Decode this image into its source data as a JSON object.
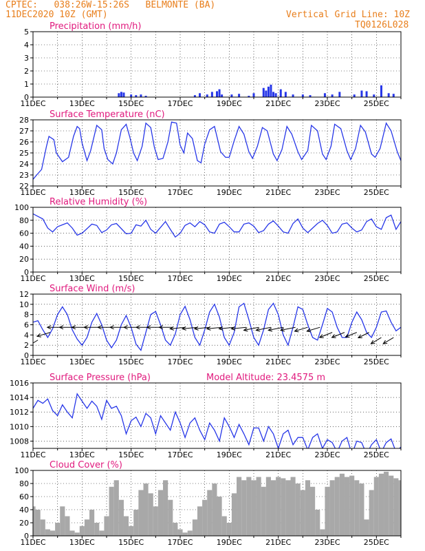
{
  "header": {
    "line1": "CPTEC:   038:26W-15:26S   BELMONTE (BA)",
    "line2": "11DEC2020 10Z (GMT)",
    "grid_note": "Vertical Grid Line: 10Z",
    "code": "TQ0126L028"
  },
  "colors": {
    "accent": "#e87e1b",
    "title": "#e0197d",
    "line": "#2636e8",
    "cloud": "#a8a8a8"
  },
  "x_ticks": [
    "11DEC",
    "13DEC",
    "15DEC",
    "17DEC",
    "19DEC",
    "21DEC",
    "23DEC",
    "25DEC"
  ],
  "chart_data": [
    {
      "type": "bar",
      "title": "Precipitation (mm/h)",
      "ylim": [
        0,
        5
      ],
      "yticks": [
        0,
        1,
        2,
        3,
        4,
        5
      ],
      "x_start_day": 11.0,
      "x_end_day": 26.0,
      "x": [
        14.5,
        14.6,
        14.7,
        15.0,
        15.2,
        15.4,
        15.6,
        17.6,
        17.8,
        18.1,
        18.3,
        18.5,
        18.6,
        18.7,
        19.1,
        19.4,
        19.8,
        20.0,
        20.4,
        20.5,
        20.6,
        20.7,
        20.8,
        20.9,
        21.1,
        21.3,
        21.6,
        22.0,
        22.3,
        22.9,
        23.2,
        23.5,
        24.1,
        24.4,
        24.6,
        24.9,
        25.2,
        25.5,
        25.7
      ],
      "values": [
        0.3,
        0.4,
        0.35,
        0.2,
        0.15,
        0.2,
        0.1,
        0.15,
        0.3,
        0.2,
        0.4,
        0.45,
        0.6,
        0.2,
        0.2,
        0.25,
        0.1,
        0.3,
        0.7,
        0.5,
        0.8,
        0.95,
        0.4,
        0.3,
        0.6,
        0.4,
        0.2,
        0.2,
        0.15,
        0.3,
        0.2,
        0.4,
        0.2,
        0.5,
        0.45,
        0.2,
        0.9,
        0.3,
        0.25
      ]
    },
    {
      "type": "line",
      "title": "Surface Temperature (nC)",
      "ylim": [
        22,
        28
      ],
      "yticks": [
        22,
        23,
        24,
        25,
        26,
        27,
        28
      ],
      "x": [
        11.0,
        11.15,
        11.35,
        11.55,
        11.65,
        11.85,
        11.95,
        12.2,
        12.45,
        12.65,
        12.8,
        12.9,
        13.0,
        13.2,
        13.35,
        13.6,
        13.8,
        13.9,
        14.05,
        14.25,
        14.4,
        14.6,
        14.8,
        14.95,
        15.1,
        15.25,
        15.45,
        15.6,
        15.8,
        15.95,
        16.1,
        16.3,
        16.5,
        16.65,
        16.85,
        17.0,
        17.15,
        17.3,
        17.5,
        17.7,
        17.85,
        18.0,
        18.2,
        18.4,
        18.65,
        18.85,
        19.0,
        19.2,
        19.4,
        19.6,
        19.8,
        19.95,
        20.15,
        20.35,
        20.55,
        20.8,
        20.95,
        21.15,
        21.35,
        21.55,
        21.8,
        21.95,
        22.2,
        22.35,
        22.6,
        22.8,
        22.95,
        23.15,
        23.3,
        23.55,
        23.8,
        23.95,
        24.15,
        24.35,
        24.55,
        24.8,
        24.95,
        25.15,
        25.4,
        25.6,
        25.85,
        26.0
      ],
      "values": [
        22.6,
        23.0,
        23.5,
        25.6,
        26.5,
        26.2,
        25.0,
        24.2,
        24.6,
        26.5,
        27.4,
        27.2,
        25.9,
        24.3,
        25.2,
        27.5,
        27.1,
        25.4,
        24.4,
        24.0,
        25.0,
        27.1,
        27.6,
        26.4,
        25.0,
        24.3,
        25.6,
        27.7,
        27.3,
        25.5,
        24.4,
        24.5,
        26.0,
        27.8,
        27.7,
        25.7,
        25.0,
        26.8,
        26.3,
        24.3,
        24.1,
        25.8,
        27.1,
        27.4,
        25.1,
        24.6,
        24.6,
        26.1,
        27.4,
        26.7,
        25.1,
        24.5,
        25.6,
        27.3,
        27.0,
        24.9,
        24.3,
        25.3,
        27.4,
        26.7,
        25.1,
        24.4,
        25.2,
        27.5,
        27.0,
        24.9,
        24.4,
        25.6,
        27.6,
        27.2,
        25.2,
        24.4,
        25.4,
        27.5,
        26.9,
        24.9,
        24.6,
        25.4,
        27.7,
        27.0,
        25.1,
        24.3
      ]
    },
    {
      "type": "line",
      "title": "Relative Humidity (%)",
      "ylim": [
        0,
        100
      ],
      "yticks": [
        0,
        20,
        40,
        60,
        80,
        100
      ],
      "x": [
        11.0,
        11.2,
        11.4,
        11.6,
        11.8,
        12.0,
        12.2,
        12.4,
        12.6,
        12.8,
        13.0,
        13.2,
        13.4,
        13.6,
        13.8,
        14.0,
        14.2,
        14.4,
        14.6,
        14.8,
        15.0,
        15.2,
        15.4,
        15.6,
        15.8,
        16.0,
        16.2,
        16.4,
        16.6,
        16.8,
        17.0,
        17.2,
        17.4,
        17.6,
        17.8,
        18.0,
        18.2,
        18.4,
        18.6,
        18.8,
        19.0,
        19.2,
        19.4,
        19.6,
        19.8,
        20.0,
        20.2,
        20.4,
        20.6,
        20.8,
        21.0,
        21.2,
        21.4,
        21.6,
        21.8,
        22.0,
        22.2,
        22.4,
        22.6,
        22.8,
        23.0,
        23.2,
        23.4,
        23.6,
        23.8,
        24.0,
        24.2,
        24.4,
        24.6,
        24.8,
        25.0,
        25.2,
        25.4,
        25.6,
        25.8,
        26.0
      ],
      "values": [
        90,
        86,
        82,
        68,
        62,
        70,
        73,
        76,
        68,
        57,
        60,
        67,
        74,
        72,
        61,
        65,
        73,
        75,
        67,
        59,
        60,
        73,
        71,
        80,
        66,
        60,
        69,
        78,
        66,
        54,
        60,
        72,
        76,
        70,
        78,
        73,
        62,
        60,
        74,
        77,
        70,
        62,
        62,
        74,
        76,
        71,
        61,
        64,
        74,
        79,
        71,
        62,
        60,
        75,
        82,
        68,
        61,
        68,
        75,
        80,
        72,
        60,
        62,
        74,
        76,
        68,
        62,
        65,
        78,
        82,
        70,
        66,
        84,
        88,
        66,
        78
      ]
    },
    {
      "type": "line",
      "title": "Surface Wind (m/s)",
      "ylim": [
        0,
        12
      ],
      "yticks": [
        0,
        2,
        4,
        6,
        8,
        10,
        12
      ],
      "x": [
        11.0,
        11.2,
        11.4,
        11.6,
        11.8,
        12.0,
        12.2,
        12.4,
        12.6,
        12.8,
        13.0,
        13.2,
        13.4,
        13.6,
        13.8,
        14.0,
        14.2,
        14.4,
        14.6,
        14.8,
        15.0,
        15.2,
        15.4,
        15.6,
        15.8,
        16.0,
        16.2,
        16.4,
        16.6,
        16.8,
        17.0,
        17.2,
        17.4,
        17.6,
        17.8,
        18.0,
        18.2,
        18.4,
        18.6,
        18.8,
        19.0,
        19.2,
        19.4,
        19.6,
        19.8,
        20.0,
        20.2,
        20.4,
        20.6,
        20.8,
        21.0,
        21.2,
        21.4,
        21.6,
        21.8,
        22.0,
        22.2,
        22.4,
        22.6,
        22.8,
        23.0,
        23.2,
        23.4,
        23.6,
        23.8,
        24.0,
        24.2,
        24.4,
        24.6,
        24.8,
        25.0,
        25.2,
        25.4,
        25.6,
        25.8,
        26.0
      ],
      "values": [
        6.5,
        6.8,
        5.0,
        3.5,
        5.2,
        8.0,
        9.5,
        8.0,
        5.0,
        3.2,
        2.0,
        3.5,
        6.5,
        8.2,
        6.0,
        3.0,
        1.5,
        3.0,
        6.0,
        7.8,
        5.5,
        2.2,
        1.0,
        4.5,
        8.0,
        8.6,
        6.0,
        3.0,
        2.0,
        4.2,
        8.0,
        9.6,
        7.0,
        3.5,
        2.0,
        5.0,
        8.5,
        10.0,
        7.5,
        3.5,
        2.0,
        4.5,
        9.5,
        10.2,
        7.0,
        3.5,
        2.0,
        5.0,
        9.0,
        10.2,
        8.0,
        4.0,
        2.0,
        5.5,
        9.5,
        9.0,
        6.0,
        3.5,
        3.0,
        6.0,
        9.2,
        8.5,
        5.5,
        3.5,
        3.5,
        6.5,
        8.5,
        7.0,
        4.5,
        3.5,
        5.5,
        8.5,
        8.7,
        6.5,
        4.8,
        5.5
      ],
      "arrows": {
        "x": [
          11.2,
          11.7,
          12.2,
          12.7,
          13.2,
          13.7,
          14.2,
          14.7,
          15.2,
          15.7,
          16.2,
          16.7,
          17.2,
          17.7,
          18.2,
          18.7,
          19.2,
          19.7,
          20.2,
          20.7,
          21.2,
          21.7,
          22.2,
          22.7,
          23.2,
          23.7,
          24.2,
          24.7,
          25.2,
          25.7
        ],
        "y": [
          3.0,
          4.5,
          5.5,
          5.5,
          5.5,
          5.5,
          5.5,
          5.5,
          5.5,
          5.5,
          5.5,
          5.5,
          5.5,
          5.5,
          5.5,
          5.5,
          5.5,
          5.5,
          5.5,
          5.5,
          5.5,
          5.5,
          5.5,
          5.5,
          4.5,
          4.5,
          4.5,
          4.5,
          3.5,
          3.5
        ],
        "dx": [
          -1,
          -1,
          -1,
          -1,
          -1,
          -1,
          -1,
          -1,
          -1,
          -1,
          -1,
          -1,
          -1,
          -1,
          -1,
          -1,
          -1,
          -1,
          -1,
          -1,
          -1,
          -1,
          -1,
          -1,
          -1,
          -1,
          -1,
          -1,
          -1,
          -1
        ],
        "dy": [
          -0.6,
          -0.3,
          0,
          0,
          0,
          0,
          0,
          0,
          0,
          0,
          0,
          0,
          -0.1,
          -0.1,
          -0.1,
          -0.1,
          -0.1,
          -0.1,
          -0.2,
          -0.2,
          -0.2,
          -0.2,
          -0.3,
          -0.3,
          -0.4,
          -0.4,
          -0.4,
          -0.5,
          -0.6,
          -0.6
        ],
        "len": [
          0.8,
          0.9,
          1.0,
          1.0,
          1.0,
          1.0,
          0.9,
          0.9,
          0.8,
          0.8,
          0.9,
          0.9,
          1.0,
          1.0,
          1.0,
          1.0,
          1.0,
          1.0,
          1.0,
          1.0,
          1.0,
          1.0,
          0.9,
          0.9,
          0.9,
          0.9,
          0.8,
          0.8,
          0.8,
          0.8
        ]
      }
    },
    {
      "type": "line",
      "title": "Surface Pressure (hPa)",
      "annotation": "Model Altitude: 23.4575 m",
      "ylim": [
        1007,
        1016
      ],
      "yticks": [
        1008,
        1010,
        1012,
        1014,
        1016
      ],
      "x": [
        11.0,
        11.2,
        11.4,
        11.6,
        11.8,
        12.0,
        12.2,
        12.4,
        12.6,
        12.8,
        13.0,
        13.2,
        13.4,
        13.6,
        13.8,
        14.0,
        14.2,
        14.4,
        14.6,
        14.8,
        15.0,
        15.2,
        15.4,
        15.6,
        15.8,
        16.0,
        16.2,
        16.4,
        16.6,
        16.8,
        17.0,
        17.2,
        17.4,
        17.6,
        17.8,
        18.0,
        18.2,
        18.4,
        18.6,
        18.8,
        19.0,
        19.2,
        19.4,
        19.6,
        19.8,
        20.0,
        20.2,
        20.4,
        20.6,
        20.8,
        21.0,
        21.2,
        21.4,
        21.6,
        21.8,
        22.0,
        22.2,
        22.4,
        22.6,
        22.8,
        23.0,
        23.2,
        23.4,
        23.6,
        23.8,
        24.0,
        24.2,
        24.4,
        24.6,
        24.8,
        25.0,
        25.2,
        25.4,
        25.6,
        25.8,
        26.0
      ],
      "values": [
        1012.5,
        1013.6,
        1013.2,
        1013.8,
        1012.2,
        1011.5,
        1013.0,
        1012.0,
        1011.2,
        1014.5,
        1013.5,
        1012.5,
        1013.5,
        1012.8,
        1011.0,
        1013.6,
        1012.5,
        1012.8,
        1011.5,
        1009.0,
        1010.8,
        1011.3,
        1010.0,
        1011.8,
        1011.2,
        1009.0,
        1011.5,
        1010.5,
        1009.5,
        1012.0,
        1010.5,
        1008.5,
        1010.5,
        1011.2,
        1009.5,
        1008.2,
        1010.5,
        1009.5,
        1008.0,
        1011.2,
        1010.0,
        1008.5,
        1010.3,
        1009.0,
        1007.5,
        1009.8,
        1009.8,
        1008.0,
        1010.0,
        1009.0,
        1007.0,
        1009.0,
        1009.5,
        1007.5,
        1008.5,
        1008.5,
        1006.8,
        1008.5,
        1009.0,
        1007.0,
        1008.2,
        1007.8,
        1006.5,
        1008.0,
        1008.5,
        1006.2,
        1008.0,
        1007.8,
        1006.2,
        1007.5,
        1008.2,
        1006.5,
        1007.8,
        1008.3,
        1006.5,
        1007.2
      ]
    },
    {
      "type": "area",
      "title": "Cloud Cover (%)",
      "ylim": [
        0,
        100
      ],
      "yticks": [
        0,
        20,
        40,
        60,
        80,
        100
      ],
      "x": [
        11.0,
        11.2,
        11.4,
        11.6,
        11.8,
        12.0,
        12.2,
        12.4,
        12.6,
        12.8,
        13.0,
        13.2,
        13.4,
        13.6,
        13.8,
        14.0,
        14.2,
        14.4,
        14.6,
        14.8,
        15.0,
        15.2,
        15.4,
        15.6,
        15.8,
        16.0,
        16.2,
        16.4,
        16.6,
        16.8,
        17.0,
        17.2,
        17.4,
        17.6,
        17.8,
        18.0,
        18.2,
        18.4,
        18.6,
        18.8,
        19.0,
        19.2,
        19.4,
        19.6,
        19.8,
        20.0,
        20.2,
        20.4,
        20.6,
        20.8,
        21.0,
        21.2,
        21.4,
        21.6,
        21.8,
        22.0,
        22.2,
        22.4,
        22.6,
        22.8,
        23.0,
        23.2,
        23.4,
        23.6,
        23.8,
        24.0,
        24.2,
        24.4,
        24.6,
        24.8,
        25.0,
        25.2,
        25.4,
        25.6,
        25.8,
        26.0
      ],
      "values": [
        45,
        40,
        25,
        10,
        8,
        20,
        45,
        30,
        8,
        5,
        15,
        25,
        40,
        20,
        8,
        30,
        75,
        85,
        55,
        30,
        15,
        40,
        70,
        80,
        65,
        45,
        70,
        85,
        55,
        20,
        10,
        5,
        8,
        25,
        45,
        55,
        70,
        80,
        60,
        30,
        20,
        65,
        90,
        85,
        90,
        85,
        90,
        75,
        90,
        85,
        90,
        88,
        85,
        90,
        80,
        70,
        85,
        75,
        40,
        10,
        75,
        85,
        90,
        95,
        90,
        92,
        85,
        80,
        25,
        70,
        90,
        95,
        98,
        92,
        88,
        85
      ]
    }
  ]
}
